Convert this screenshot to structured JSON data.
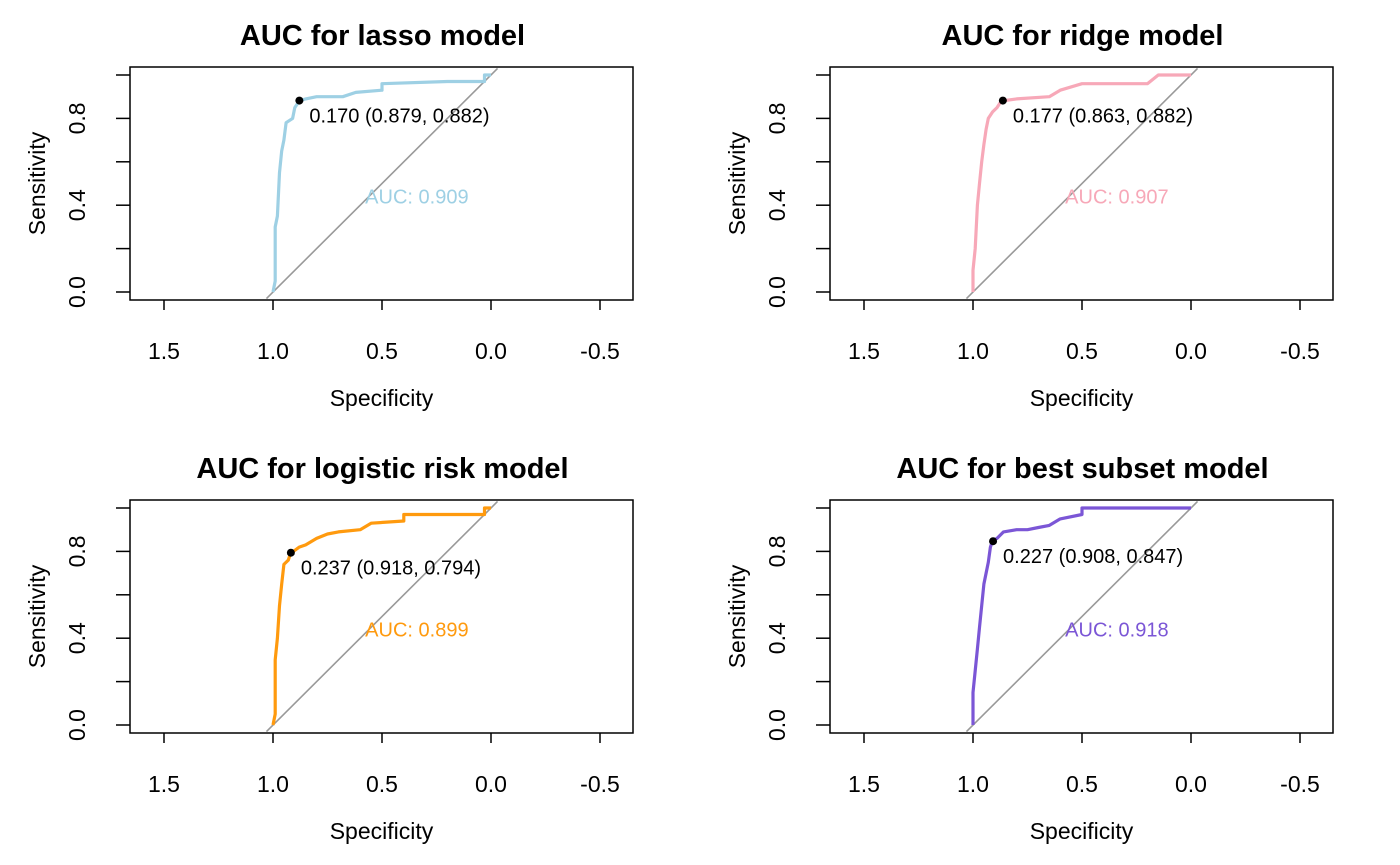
{
  "chart_data": [
    {
      "type": "line",
      "title": "AUC for lasso model",
      "xlabel": "Specificity",
      "ylabel": "Sensitivity",
      "xlim": [
        1.5,
        -0.5
      ],
      "x_reversed": true,
      "x_ticks": [
        "1.5",
        "1.0",
        "0.5",
        "0.0",
        "-0.5"
      ],
      "y_ticks": [
        "0.0",
        "0.4",
        "0.8"
      ],
      "color": "#9ED0E4",
      "auc_label": "AUC: 0.909",
      "threshold": {
        "label": "0.170 (0.879, 0.882)",
        "specificity": 0.879,
        "sensitivity": 0.882
      },
      "series": [
        {
          "points": [
            [
              1.0,
              0.0
            ],
            [
              0.99,
              0.05
            ],
            [
              0.99,
              0.3
            ],
            [
              0.98,
              0.35
            ],
            [
              0.97,
              0.55
            ],
            [
              0.96,
              0.65
            ],
            [
              0.95,
              0.7
            ],
            [
              0.94,
              0.78
            ],
            [
              0.91,
              0.8
            ],
            [
              0.9,
              0.85
            ],
            [
              0.88,
              0.88
            ],
            [
              0.85,
              0.89
            ],
            [
              0.8,
              0.9
            ],
            [
              0.68,
              0.9
            ],
            [
              0.62,
              0.92
            ],
            [
              0.5,
              0.93
            ],
            [
              0.5,
              0.96
            ],
            [
              0.2,
              0.97
            ],
            [
              0.1,
              0.97
            ],
            [
              0.03,
              0.97
            ],
            [
              0.03,
              1.0
            ],
            [
              0.0,
              1.0
            ]
          ]
        }
      ]
    },
    {
      "type": "line",
      "title": "AUC for ridge model",
      "xlabel": "Specificity",
      "ylabel": "Sensitivity",
      "xlim": [
        1.5,
        -0.5
      ],
      "x_reversed": true,
      "x_ticks": [
        "1.5",
        "1.0",
        "0.5",
        "0.0",
        "-0.5"
      ],
      "y_ticks": [
        "0.0",
        "0.4",
        "0.8"
      ],
      "color": "#F7A8B8",
      "auc_label": "AUC: 0.907",
      "threshold": {
        "label": "0.177 (0.863, 0.882)",
        "specificity": 0.863,
        "sensitivity": 0.882
      },
      "series": [
        {
          "points": [
            [
              1.0,
              0.0
            ],
            [
              1.0,
              0.1
            ],
            [
              0.99,
              0.2
            ],
            [
              0.98,
              0.4
            ],
            [
              0.97,
              0.5
            ],
            [
              0.96,
              0.6
            ],
            [
              0.95,
              0.68
            ],
            [
              0.94,
              0.75
            ],
            [
              0.93,
              0.8
            ],
            [
              0.91,
              0.83
            ],
            [
              0.89,
              0.85
            ],
            [
              0.87,
              0.88
            ],
            [
              0.8,
              0.89
            ],
            [
              0.65,
              0.9
            ],
            [
              0.6,
              0.93
            ],
            [
              0.5,
              0.96
            ],
            [
              0.2,
              0.96
            ],
            [
              0.15,
              1.0
            ],
            [
              0.0,
              1.0
            ]
          ]
        }
      ]
    },
    {
      "type": "line",
      "title": "AUC for logistic risk model",
      "xlabel": "Specificity",
      "ylabel": "Sensitivity",
      "xlim": [
        1.5,
        -0.5
      ],
      "x_reversed": true,
      "x_ticks": [
        "1.5",
        "1.0",
        "0.5",
        "0.0",
        "-0.5"
      ],
      "y_ticks": [
        "0.0",
        "0.4",
        "0.8"
      ],
      "color": "#FF9A0E",
      "auc_label": "AUC: 0.899",
      "threshold": {
        "label": "0.237 (0.918, 0.794)",
        "specificity": 0.918,
        "sensitivity": 0.794
      },
      "series": [
        {
          "points": [
            [
              1.0,
              0.0
            ],
            [
              0.99,
              0.05
            ],
            [
              0.99,
              0.3
            ],
            [
              0.98,
              0.4
            ],
            [
              0.97,
              0.55
            ],
            [
              0.96,
              0.65
            ],
            [
              0.95,
              0.74
            ],
            [
              0.93,
              0.76
            ],
            [
              0.92,
              0.79
            ],
            [
              0.88,
              0.82
            ],
            [
              0.85,
              0.83
            ],
            [
              0.8,
              0.86
            ],
            [
              0.75,
              0.88
            ],
            [
              0.7,
              0.89
            ],
            [
              0.6,
              0.9
            ],
            [
              0.55,
              0.93
            ],
            [
              0.4,
              0.94
            ],
            [
              0.4,
              0.97
            ],
            [
              0.2,
              0.97
            ],
            [
              0.03,
              0.97
            ],
            [
              0.03,
              1.0
            ],
            [
              0.0,
              1.0
            ]
          ]
        }
      ]
    },
    {
      "type": "line",
      "title": "AUC for best subset model",
      "xlabel": "Specificity",
      "ylabel": "Sensitivity",
      "xlim": [
        1.5,
        -0.5
      ],
      "x_reversed": true,
      "x_ticks": [
        "1.5",
        "1.0",
        "0.5",
        "0.0",
        "-0.5"
      ],
      "y_ticks": [
        "0.0",
        "0.4",
        "0.8"
      ],
      "color": "#7B56D6",
      "auc_label": "AUC: 0.918",
      "threshold": {
        "label": "0.227 (0.908, 0.847)",
        "specificity": 0.908,
        "sensitivity": 0.847
      },
      "series": [
        {
          "points": [
            [
              1.0,
              0.0
            ],
            [
              1.0,
              0.15
            ],
            [
              0.99,
              0.25
            ],
            [
              0.98,
              0.35
            ],
            [
              0.97,
              0.45
            ],
            [
              0.96,
              0.55
            ],
            [
              0.95,
              0.65
            ],
            [
              0.93,
              0.75
            ],
            [
              0.92,
              0.82
            ],
            [
              0.91,
              0.85
            ],
            [
              0.89,
              0.86
            ],
            [
              0.86,
              0.89
            ],
            [
              0.8,
              0.9
            ],
            [
              0.75,
              0.9
            ],
            [
              0.7,
              0.91
            ],
            [
              0.65,
              0.92
            ],
            [
              0.6,
              0.95
            ],
            [
              0.5,
              0.97
            ],
            [
              0.5,
              1.0
            ],
            [
              0.0,
              1.0
            ]
          ]
        }
      ]
    }
  ]
}
